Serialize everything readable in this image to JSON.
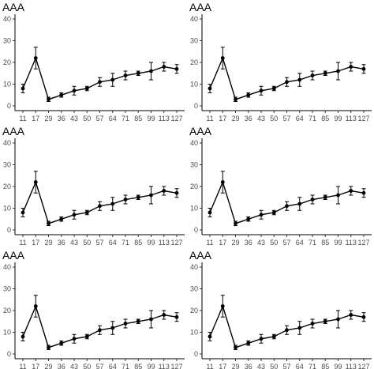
{
  "chart_data": [
    {
      "type": "line",
      "title": "AAA",
      "x": [
        11,
        17,
        29,
        36,
        43,
        50,
        57,
        64,
        71,
        85,
        99,
        113,
        127
      ],
      "x_tick_labels": [
        "11",
        "17",
        "29",
        "36",
        "43",
        "50",
        "57",
        "64",
        "71",
        "85",
        "99",
        "113",
        "127"
      ],
      "x_scale": "categorical",
      "y": [
        8,
        22,
        3,
        5,
        7,
        8,
        11,
        12,
        14,
        15,
        16,
        18,
        17
      ],
      "y_err": [
        2,
        5,
        1,
        1,
        2,
        1,
        2,
        3,
        2,
        1,
        4,
        2,
        2
      ],
      "y_ticks": [
        "0",
        "10",
        "20",
        "30",
        "40"
      ],
      "ylim": [
        0,
        40
      ],
      "grid": false
    },
    {
      "type": "line",
      "title": "AAA",
      "x": [
        11,
        17,
        29,
        36,
        43,
        50,
        57,
        64,
        71,
        85,
        99,
        113,
        127
      ],
      "x_tick_labels": [
        "11",
        "17",
        "29",
        "36",
        "43",
        "50",
        "57",
        "64",
        "71",
        "85",
        "99",
        "113",
        "127"
      ],
      "x_scale": "categorical",
      "y": [
        8,
        22,
        3,
        5,
        7,
        8,
        11,
        12,
        14,
        15,
        16,
        18,
        17
      ],
      "y_err": [
        2,
        5,
        1,
        1,
        2,
        1,
        2,
        3,
        2,
        1,
        4,
        2,
        2
      ],
      "y_ticks": [
        "0",
        "10",
        "20",
        "30",
        "40"
      ],
      "ylim": [
        0,
        40
      ],
      "grid": false
    },
    {
      "type": "line",
      "title": "AAA",
      "x": [
        11,
        17,
        29,
        36,
        43,
        50,
        57,
        64,
        71,
        85,
        99,
        113,
        127
      ],
      "x_tick_labels": [
        "11",
        "17",
        "29",
        "36",
        "43",
        "50",
        "57",
        "64",
        "71",
        "85",
        "99",
        "113",
        "127"
      ],
      "x_scale": "categorical",
      "y": [
        8,
        22,
        3,
        5,
        7,
        8,
        11,
        12,
        14,
        15,
        16,
        18,
        17
      ],
      "y_err": [
        2,
        5,
        1,
        1,
        2,
        1,
        2,
        3,
        2,
        1,
        4,
        2,
        2
      ],
      "y_ticks": [
        "0",
        "10",
        "20",
        "30",
        "40"
      ],
      "ylim": [
        0,
        40
      ],
      "grid": false
    },
    {
      "type": "line",
      "title": "AAA",
      "x": [
        11,
        17,
        29,
        36,
        43,
        50,
        57,
        64,
        71,
        85,
        99,
        113,
        127
      ],
      "x_tick_labels": [
        "11",
        "17",
        "29",
        "36",
        "43",
        "50",
        "57",
        "64",
        "71",
        "85",
        "99",
        "113",
        "127"
      ],
      "x_scale": "categorical",
      "y": [
        8,
        22,
        3,
        5,
        7,
        8,
        11,
        12,
        14,
        15,
        16,
        18,
        17
      ],
      "y_err": [
        2,
        5,
        1,
        1,
        2,
        1,
        2,
        3,
        2,
        1,
        4,
        2,
        2
      ],
      "y_ticks": [
        "0",
        "10",
        "20",
        "30",
        "40"
      ],
      "ylim": [
        0,
        40
      ],
      "grid": false
    },
    {
      "type": "line",
      "title": "AAA",
      "x": [
        11,
        17,
        29,
        36,
        43,
        50,
        57,
        64,
        71,
        85,
        99,
        113,
        127
      ],
      "x_tick_labels": [
        "11",
        "17",
        "29",
        "36",
        "43",
        "50",
        "57",
        "64",
        "71",
        "85",
        "99",
        "113",
        "127"
      ],
      "x_scale": "categorical",
      "y": [
        8,
        22,
        3,
        5,
        7,
        8,
        11,
        12,
        14,
        15,
        16,
        18,
        17
      ],
      "y_err": [
        2,
        5,
        1,
        1,
        2,
        1,
        2,
        3,
        2,
        1,
        4,
        2,
        2
      ],
      "y_ticks": [
        "0",
        "10",
        "20",
        "30",
        "40"
      ],
      "ylim": [
        0,
        40
      ],
      "grid": false
    },
    {
      "type": "line",
      "title": "AAA",
      "x": [
        11,
        17,
        29,
        36,
        43,
        50,
        57,
        64,
        71,
        85,
        99,
        113,
        127
      ],
      "x_tick_labels": [
        "11",
        "17",
        "29",
        "36",
        "43",
        "50",
        "57",
        "64",
        "71",
        "85",
        "99",
        "113",
        "127"
      ],
      "x_scale": "categorical",
      "y": [
        8,
        22,
        3,
        5,
        7,
        8,
        11,
        12,
        14,
        15,
        16,
        18,
        17
      ],
      "y_err": [
        2,
        5,
        1,
        1,
        2,
        1,
        2,
        3,
        2,
        1,
        4,
        2,
        2
      ],
      "y_ticks": [
        "0",
        "10",
        "20",
        "30",
        "40"
      ],
      "ylim": [
        0,
        40
      ],
      "grid": false
    }
  ]
}
